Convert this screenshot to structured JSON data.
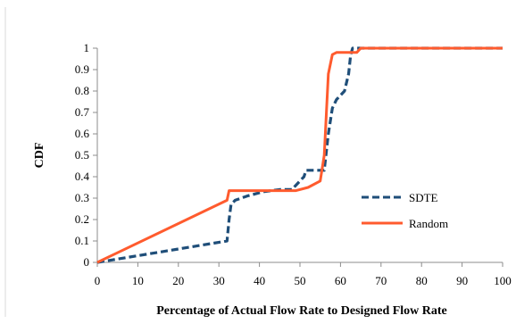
{
  "chart_data": {
    "type": "line",
    "title": "",
    "xlabel": "Percentage of Actual Flow Rate to Designed Flow Rate",
    "ylabel": "CDF",
    "xlim": [
      0,
      100
    ],
    "ylim": [
      0,
      1
    ],
    "x_ticks": [
      0,
      10,
      20,
      30,
      40,
      50,
      60,
      70,
      80,
      90,
      100
    ],
    "y_ticks": [
      0,
      0.1,
      0.2,
      0.3,
      0.4,
      0.5,
      0.6,
      0.7,
      0.8,
      0.9,
      1
    ],
    "x_tick_labels": [
      "0",
      "10",
      "20",
      "30",
      "40",
      "50",
      "60",
      "70",
      "80",
      "90",
      "100"
    ],
    "y_tick_labels": [
      "0",
      "0.1",
      "0.2",
      "0.3",
      "0.4",
      "0.5",
      "0.6",
      "0.7",
      "0.8",
      "0.9",
      "1"
    ],
    "grid": false,
    "legend_position": "right",
    "series": [
      {
        "name": "SDTE",
        "color": "#1f4e79",
        "style": "dashed",
        "x": [
          0,
          32,
          32.5,
          33,
          34,
          37,
          41,
          45,
          48,
          51,
          51.5,
          54,
          56,
          57,
          58,
          59,
          60,
          61,
          62,
          62.5,
          63,
          64,
          100
        ],
        "y": [
          0,
          0.1,
          0.2,
          0.27,
          0.29,
          0.31,
          0.33,
          0.34,
          0.34,
          0.4,
          0.43,
          0.43,
          0.43,
          0.6,
          0.72,
          0.76,
          0.78,
          0.8,
          0.88,
          0.97,
          1,
          1,
          1
        ]
      },
      {
        "name": "Random",
        "color": "#ff5b2e",
        "style": "solid",
        "x": [
          0,
          32,
          32.5,
          40,
          47,
          49,
          52,
          55,
          56,
          57,
          58,
          59,
          60,
          62,
          63,
          64,
          65,
          100
        ],
        "y": [
          0,
          0.29,
          0.335,
          0.335,
          0.335,
          0.335,
          0.35,
          0.38,
          0.5,
          0.88,
          0.97,
          0.98,
          0.98,
          0.98,
          0.98,
          0.98,
          1,
          1
        ]
      }
    ]
  }
}
